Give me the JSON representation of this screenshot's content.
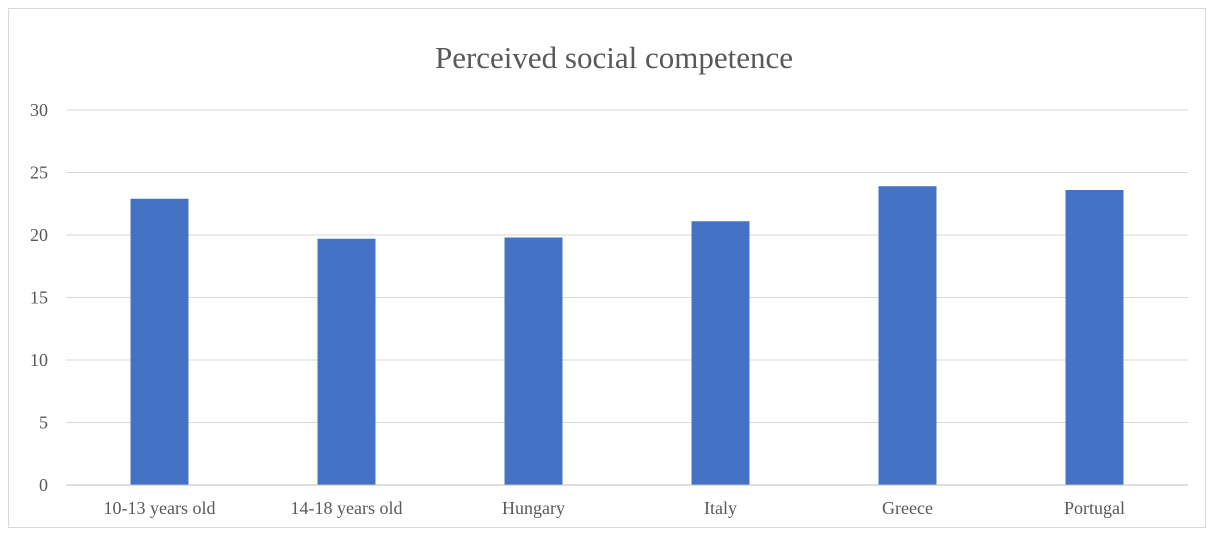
{
  "chart_data": {
    "type": "bar",
    "title": "Perceived social competence",
    "xlabel": "",
    "ylabel": "",
    "categories": [
      "10-13 years old",
      "14-18 years old",
      "Hungary",
      "Italy",
      "Greece",
      "Portugal"
    ],
    "values": [
      22.9,
      19.7,
      19.8,
      21.1,
      23.9,
      23.6
    ],
    "ylim": [
      0,
      30
    ],
    "yticks": [
      "0",
      "5",
      "10",
      "15",
      "20",
      "25",
      "30"
    ],
    "grid": true,
    "legend": "none",
    "bar_color": "#4472c4"
  }
}
